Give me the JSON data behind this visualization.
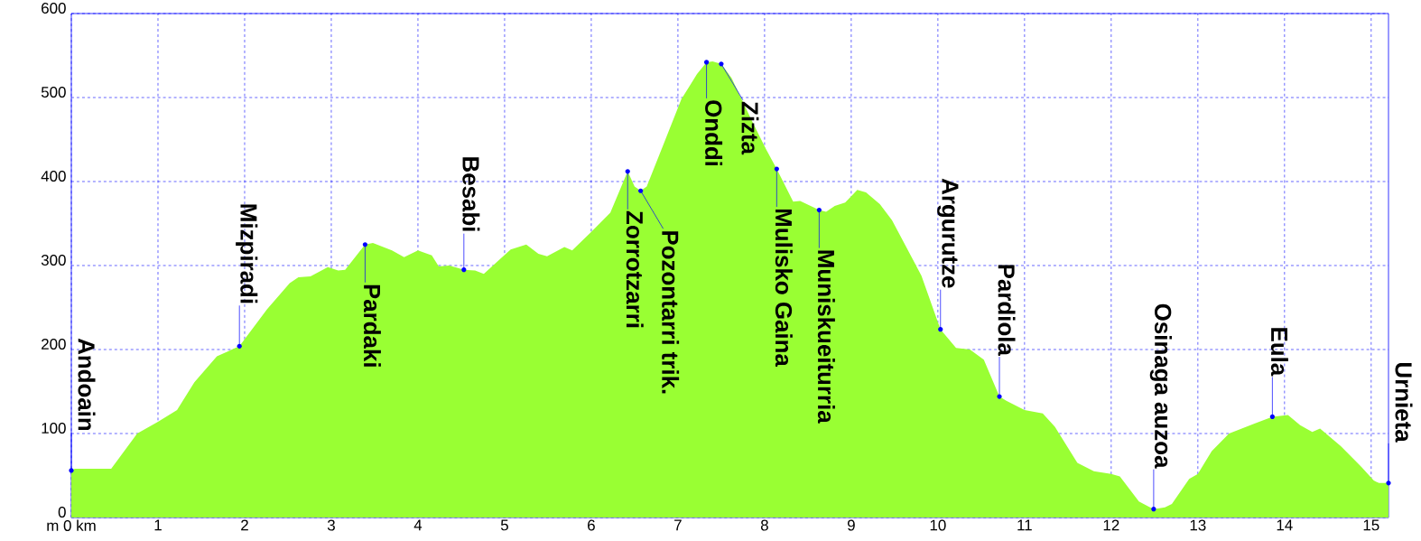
{
  "chart_data": {
    "type": "area",
    "xlim": [
      0,
      15.2
    ],
    "ylim": [
      0,
      600
    ],
    "xticks": [
      {
        "value": 0,
        "label": "m 0 km"
      },
      1,
      2,
      3,
      4,
      5,
      6,
      7,
      8,
      9,
      10,
      11,
      12,
      13,
      14,
      15
    ],
    "yticks": [
      0,
      100,
      200,
      300,
      400,
      500,
      600
    ],
    "grid": true,
    "series": [
      {
        "color": "#99ff33",
        "x": [
          0,
          0.04,
          0.46,
          0.76,
          1.0,
          1.22,
          1.42,
          1.68,
          1.94,
          2.26,
          2.52,
          2.62,
          2.76,
          2.96,
          3.08,
          3.16,
          3.39,
          3.48,
          3.7,
          3.84,
          4.0,
          4.16,
          4.24,
          4.36,
          4.53,
          4.66,
          4.76,
          4.94,
          5.07,
          5.25,
          5.39,
          5.49,
          5.69,
          5.78,
          6.0,
          6.22,
          6.42,
          6.5,
          6.57,
          6.64,
          6.84,
          7.04,
          7.22,
          7.33,
          7.4,
          7.5,
          7.62,
          7.86,
          8.02,
          8.14,
          8.33,
          8.41,
          8.63,
          8.71,
          8.81,
          8.93,
          9.07,
          9.17,
          9.33,
          9.47,
          9.61,
          9.81,
          10.03,
          10.21,
          10.37,
          10.53,
          10.71,
          10.79,
          11.0,
          11.21,
          11.35,
          11.61,
          11.8,
          12.0,
          12.1,
          12.32,
          12.49,
          12.62,
          12.7,
          12.9,
          13.0,
          13.16,
          13.36,
          13.66,
          13.86,
          14.04,
          14.18,
          14.32,
          14.41,
          14.65,
          14.89,
          15.03,
          15.09,
          15.2
        ],
        "values": [
          56,
          58,
          58,
          100,
          114,
          128,
          161,
          192,
          204,
          248,
          279,
          286,
          287,
          298,
          294,
          295,
          325,
          327,
          318,
          310,
          318,
          312,
          299,
          300,
          295,
          294,
          290,
          307,
          319,
          325,
          314,
          311,
          322,
          318,
          340,
          363,
          412,
          394,
          389,
          394,
          446,
          498,
          528,
          542,
          543,
          540,
          523,
          471,
          438,
          415,
          376,
          377,
          366,
          364,
          371,
          375,
          390,
          387,
          373,
          354,
          327,
          288,
          224,
          202,
          200,
          188,
          144,
          139,
          128,
          124,
          108,
          65,
          55,
          52,
          49,
          19,
          10,
          12,
          16,
          46,
          52,
          79,
          100,
          112,
          120,
          122,
          110,
          102,
          106,
          85,
          60,
          44,
          41,
          41
        ]
      }
    ],
    "annotations": [
      {
        "text": "Andoain",
        "x": 0,
        "y": 56
      },
      {
        "text": "Mizpiradi",
        "x": 1.94,
        "y": 204
      },
      {
        "text": "Pardaki",
        "x": 3.39,
        "y": 325
      },
      {
        "text": "Besabi",
        "x": 4.53,
        "y": 295
      },
      {
        "text": "Zorrotzarri",
        "x": 6.42,
        "y": 412
      },
      {
        "text": "Pozontarri trik.",
        "x": 6.57,
        "y": 389
      },
      {
        "text": "Onddi",
        "x": 7.33,
        "y": 542
      },
      {
        "text": "Zizta",
        "x": 7.5,
        "y": 540
      },
      {
        "text": "Mulisko Gaina",
        "x": 8.14,
        "y": 415
      },
      {
        "text": "Muniskueiturria",
        "x": 8.63,
        "y": 366
      },
      {
        "text": "Argurutze",
        "x": 10.03,
        "y": 224
      },
      {
        "text": "Pardiola",
        "x": 10.71,
        "y": 144
      },
      {
        "text": "Osinaga auzoa",
        "x": 12.49,
        "y": 10
      },
      {
        "text": "Eula",
        "x": 13.86,
        "y": 120
      },
      {
        "text": "Urnieta",
        "x": 15.2,
        "y": 41
      }
    ]
  }
}
